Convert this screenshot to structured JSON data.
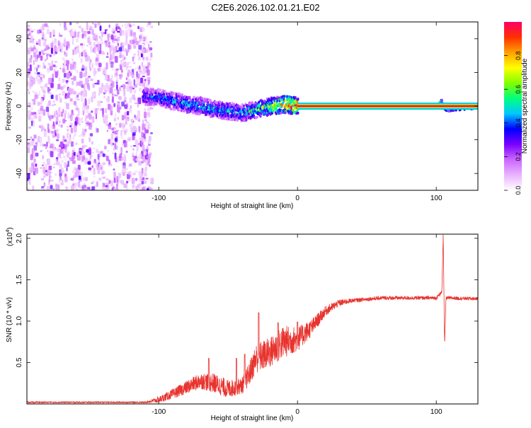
{
  "title": "C2E6.2026.102.01.21.E02",
  "chart_data": [
    {
      "type": "heatmap",
      "xlabel": "Height of straight line (km)",
      "ylabel": "Frequency (Hz)",
      "xlim": [
        -195,
        130
      ],
      "ylim": [
        -50,
        50
      ],
      "xticks": [
        -100,
        0,
        100
      ],
      "yticks": [
        -40,
        -20,
        0,
        20,
        40
      ],
      "colorbar": {
        "label": "Normalized spectral amplitude",
        "range": [
          0,
          1
        ],
        "ticks": [
          "0.0",
          "0.2",
          "0.4",
          "0.6",
          "0.8"
        ],
        "stops": [
          "#ffffff",
          "#e8b4ff",
          "#cc66ff",
          "#7a00ff",
          "#0000ff",
          "#00c8ff",
          "#00ff80",
          "#80ff00",
          "#ffff00",
          "#ffa000",
          "#ff3000",
          "#ff0066"
        ]
      },
      "noise_region": {
        "x": [
          -195,
          -110
        ],
        "y": [
          -50,
          50
        ],
        "amplitude": 0.15
      },
      "ridge": [
        {
          "x": -112,
          "y": 6,
          "amp": 0.35
        },
        {
          "x": -100,
          "y": 5,
          "amp": 0.4
        },
        {
          "x": -90,
          "y": 3,
          "amp": 0.42
        },
        {
          "x": -80,
          "y": 1,
          "amp": 0.45
        },
        {
          "x": -70,
          "y": 0,
          "amp": 0.45
        },
        {
          "x": -60,
          "y": -2,
          "amp": 0.45
        },
        {
          "x": -50,
          "y": -3,
          "amp": 0.45
        },
        {
          "x": -40,
          "y": -4,
          "amp": 0.45
        },
        {
          "x": -30,
          "y": -2,
          "amp": 0.55
        },
        {
          "x": -20,
          "y": 0,
          "amp": 0.7
        },
        {
          "x": -10,
          "y": 1,
          "amp": 0.85
        },
        {
          "x": 0,
          "y": 0,
          "amp": 0.95
        },
        {
          "x": 50,
          "y": 0,
          "amp": 1.0
        },
        {
          "x": 100,
          "y": 0,
          "amp": 1.0
        },
        {
          "x": 103,
          "y": 3,
          "amp": 0.5
        },
        {
          "x": 106,
          "y": -2,
          "amp": 0.5
        },
        {
          "x": 130,
          "y": 0,
          "amp": 1.0
        }
      ]
    },
    {
      "type": "line",
      "xlabel": "Height of straight line (km)",
      "ylabel": "SNR (10 * v/v)",
      "scale_label": "(x10",
      "scale_exponent": "4",
      "xlim": [
        -195,
        130
      ],
      "ylim": [
        0,
        2.05
      ],
      "xticks": [
        -100,
        0,
        100
      ],
      "yticks": [
        "0.5",
        "1.0",
        "1.5",
        "2.0"
      ],
      "series": [
        {
          "name": "SNR",
          "color": "#e8332e",
          "points": [
            [
              -195,
              0.02
            ],
            [
              -110,
              0.02
            ],
            [
              -100,
              0.05
            ],
            [
              -90,
              0.12
            ],
            [
              -80,
              0.2
            ],
            [
              -70,
              0.28
            ],
            [
              -60,
              0.25
            ],
            [
              -50,
              0.18
            ],
            [
              -40,
              0.22
            ],
            [
              -35,
              0.35
            ],
            [
              -30,
              0.55
            ],
            [
              -20,
              0.62
            ],
            [
              -10,
              0.75
            ],
            [
              0,
              0.78
            ],
            [
              10,
              0.92
            ],
            [
              20,
              1.12
            ],
            [
              30,
              1.22
            ],
            [
              40,
              1.25
            ],
            [
              60,
              1.28
            ],
            [
              100,
              1.28
            ],
            [
              104,
              1.35
            ],
            [
              105,
              2.05
            ],
            [
              106,
              0.7
            ],
            [
              107,
              1.28
            ],
            [
              130,
              1.27
            ]
          ],
          "noise_amplitude": [
            [
              -195,
              0.008
            ],
            [
              -110,
              0.008
            ],
            [
              -100,
              0.04
            ],
            [
              -60,
              0.12
            ],
            [
              -40,
              0.1
            ],
            [
              -30,
              0.18
            ],
            [
              -10,
              0.2
            ],
            [
              0,
              0.15
            ],
            [
              20,
              0.06
            ],
            [
              40,
              0.025
            ],
            [
              130,
              0.02
            ]
          ],
          "spikes": [
            [
              -64,
              0.55
            ],
            [
              -44,
              0.55
            ],
            [
              -38,
              0.6
            ],
            [
              -28,
              1.1
            ],
            [
              -14,
              0.98
            ],
            [
              0,
              0.99
            ]
          ]
        }
      ]
    }
  ]
}
